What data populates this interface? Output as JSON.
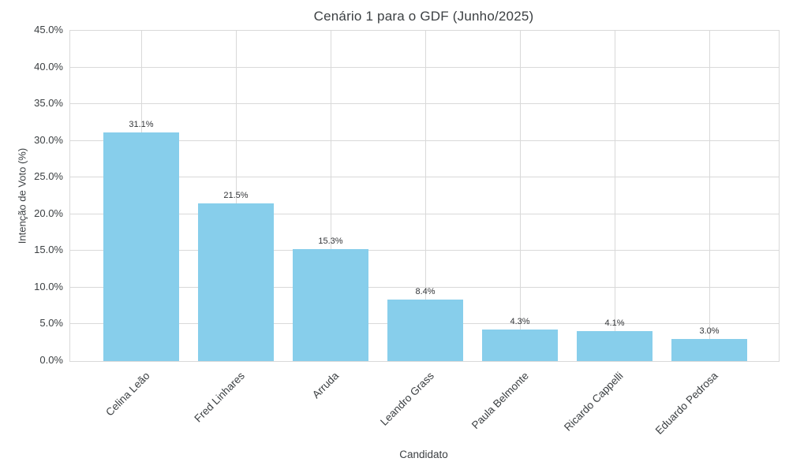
{
  "chart_data": {
    "type": "bar",
    "title": "Cenário 1 para o GDF (Junho/2025)",
    "xlabel": "Candidato",
    "ylabel": "Intenção de Voto (%)",
    "categories": [
      "Celina Leão",
      "Fred Linhares",
      "Arruda",
      "Leandro Grass",
      "Paula Belmonte",
      "Ricardo Cappelli",
      "Eduardo Pedrosa"
    ],
    "values": [
      31.1,
      21.5,
      15.3,
      8.4,
      4.3,
      4.1,
      3.0
    ],
    "value_labels": [
      "31.1%",
      "21.5%",
      "15.3%",
      "8.4%",
      "4.3%",
      "4.1%",
      "3.0%"
    ],
    "ylim": [
      0,
      45
    ],
    "ytick_step": 5,
    "ytick_labels": [
      "0.0%",
      "5.0%",
      "10.0%",
      "15.0%",
      "20.0%",
      "25.0%",
      "30.0%",
      "35.0%",
      "40.0%",
      "45.0%"
    ],
    "grid": true,
    "legend": false,
    "bar_color": "#87CEEB",
    "grid_color": "#d9d9d9",
    "text_color": "#3c4043"
  }
}
